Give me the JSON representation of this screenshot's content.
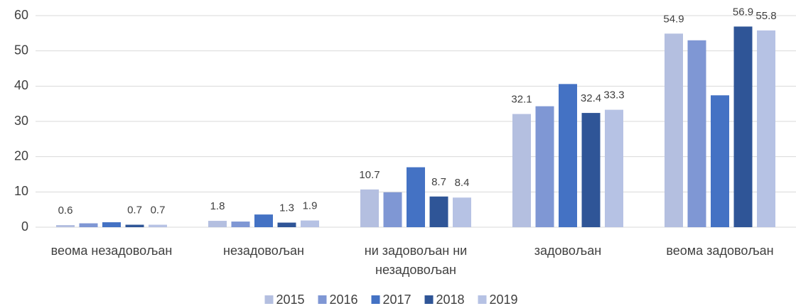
{
  "chart_data": {
    "type": "bar",
    "categories": [
      "веома незадовољан",
      "незадовољан",
      "ни задовољан ни незадовољан",
      "задовољан",
      "веома задовољан"
    ],
    "series": [
      {
        "name": "2015",
        "color": "#b4bfe0",
        "values": [
          0.6,
          1.8,
          10.7,
          32.1,
          54.9
        ],
        "data_labels": true
      },
      {
        "name": "2016",
        "color": "#7f97d4",
        "values": [
          1.1,
          1.6,
          9.9,
          34.3,
          53.0
        ],
        "data_labels": false
      },
      {
        "name": "2017",
        "color": "#4472c4",
        "values": [
          1.4,
          3.6,
          17.0,
          40.6,
          37.4
        ],
        "data_labels": false
      },
      {
        "name": "2018",
        "color": "#2f5597",
        "values": [
          0.7,
          1.3,
          8.7,
          32.4,
          56.9
        ],
        "data_labels": true
      },
      {
        "name": "2019",
        "color": "#b6c2e4",
        "values": [
          0.7,
          1.9,
          8.4,
          33.3,
          55.8
        ],
        "data_labels": true
      }
    ],
    "ylim": [
      0,
      60
    ],
    "yticks": [
      0,
      10,
      20,
      30,
      40,
      50,
      60
    ],
    "grid": true,
    "legend": "bottom"
  }
}
